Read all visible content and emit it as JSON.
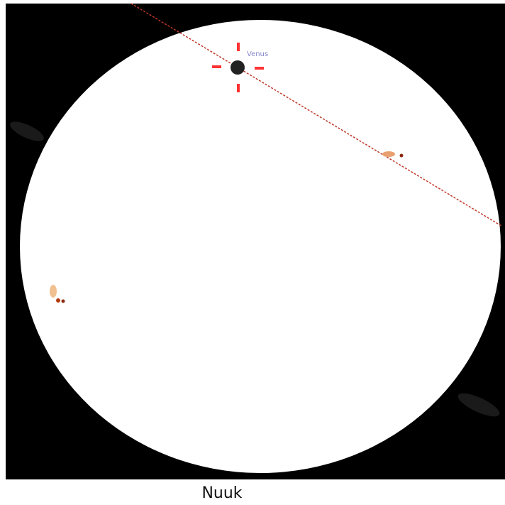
{
  "image": {
    "label": "Venus"
  },
  "caption": "Nuuk"
}
